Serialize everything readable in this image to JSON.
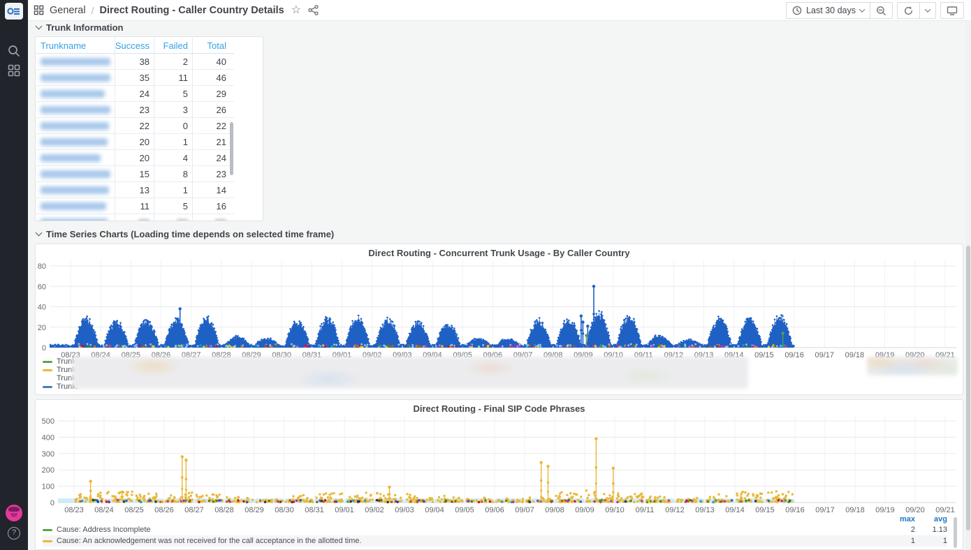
{
  "sidebar": {
    "help_label": "?"
  },
  "header": {
    "breadcrumb": {
      "section": "General",
      "separator": "/",
      "title": "Direct Routing - Caller Country Details"
    },
    "time_picker": {
      "label": "Last 30 days"
    }
  },
  "sections": {
    "trunk_information": "Trunk Information",
    "time_series": "Time Series Charts (Loading time depends on selected time frame)"
  },
  "trunk_table": {
    "columns": [
      "Trunkname",
      "Success",
      "Failed",
      "Total"
    ],
    "names_redacted": true,
    "partial_row_visible": true,
    "rows": [
      {
        "success": "38",
        "failed": "2",
        "total": "40"
      },
      {
        "success": "35",
        "failed": "11",
        "total": "46"
      },
      {
        "success": "24",
        "failed": "5",
        "total": "29"
      },
      {
        "success": "23",
        "failed": "3",
        "total": "26"
      },
      {
        "success": "22",
        "failed": "0",
        "total": "22"
      },
      {
        "success": "20",
        "failed": "1",
        "total": "21"
      },
      {
        "success": "20",
        "failed": "4",
        "total": "24"
      },
      {
        "success": "15",
        "failed": "8",
        "total": "23"
      },
      {
        "success": "13",
        "failed": "1",
        "total": "14"
      },
      {
        "success": "11",
        "failed": "5",
        "total": "16"
      }
    ]
  },
  "chart_data": [
    {
      "type": "scatter",
      "title": "Direct Routing - Concurrent Trunk Usage - By Caller Country",
      "ylim": [
        0,
        80
      ],
      "y_ticks": [
        0,
        20,
        40,
        60,
        80
      ],
      "x_ticks": [
        "08/23",
        "08/24",
        "08/25",
        "08/26",
        "08/27",
        "08/28",
        "08/29",
        "08/30",
        "08/31",
        "09/01",
        "09/02",
        "09/03",
        "09/04",
        "09/05",
        "09/06",
        "09/07",
        "09/08",
        "09/09",
        "09/10",
        "09/11",
        "09/12",
        "09/13",
        "09/14",
        "09/15",
        "09/16",
        "09/17",
        "09/18",
        "09/19",
        "09/20",
        "09/21"
      ],
      "series_color": "#1f60c4",
      "daily_peaks": [
        25,
        22,
        23,
        24,
        26,
        8,
        6,
        22,
        25,
        26,
        25,
        22,
        20,
        6,
        6,
        23,
        25,
        30,
        28,
        9,
        5,
        25,
        25,
        27
      ],
      "spikes": [
        [
          3.55,
          28
        ],
        [
          3.63,
          38
        ],
        [
          16.93,
          31
        ],
        [
          16.99,
          25
        ],
        [
          17.15,
          21
        ],
        [
          17.35,
          60
        ],
        [
          17.5,
          30
        ]
      ],
      "green_spikes": [
        [
          17.1,
          12
        ],
        [
          23.62,
          14
        ]
      ],
      "accent_colors": [
        "#e02f9c",
        "#8f3bb8",
        "#c4162a",
        "#fa6400",
        "#37872d",
        "#96d98d",
        "#8ab8ff",
        "#9e6b00",
        "#f2cc0c",
        "#17a2b8"
      ],
      "legend_redacted": true,
      "legend": [
        {
          "label": "Trunk:",
          "color": "#56a64b",
          "dotted": false
        },
        {
          "label": "Trunk:",
          "color": "#eab839",
          "dotted": false
        },
        {
          "label": "Trunk:",
          "color": "#8ab8ff",
          "dotted": true
        },
        {
          "label": "Trunk:",
          "color": "#447ebc",
          "dotted": false
        }
      ]
    },
    {
      "type": "scatter",
      "title": "Direct Routing - Final SIP Code Phrases",
      "ylim": [
        0,
        500
      ],
      "y_ticks": [
        0,
        100,
        200,
        300,
        400,
        500
      ],
      "x_ticks": [
        "08/23",
        "08/24",
        "08/25",
        "08/26",
        "08/27",
        "08/28",
        "08/29",
        "08/30",
        "08/31",
        "09/01",
        "09/02",
        "09/03",
        "09/04",
        "09/05",
        "09/06",
        "09/07",
        "09/08",
        "09/09",
        "09/10",
        "09/11",
        "09/12",
        "09/13",
        "09/14",
        "09/15",
        "09/16",
        "09/17",
        "09/18",
        "09/19",
        "09/20",
        "09/21"
      ],
      "dot_color": "#eab839",
      "band_color": "#cdeef9",
      "daily_max": [
        60,
        70,
        55,
        60,
        50,
        30,
        20,
        45,
        55,
        60,
        55,
        50,
        40,
        25,
        20,
        40,
        60,
        70,
        60,
        35,
        25,
        55,
        70,
        75
      ],
      "spikes": [
        [
          0.55,
          130
        ],
        [
          1.6,
          65
        ],
        [
          3.6,
          280
        ],
        [
          3.73,
          260
        ],
        [
          10.5,
          95
        ],
        [
          15.55,
          245
        ],
        [
          15.78,
          222
        ],
        [
          17.38,
          390
        ],
        [
          17.95,
          210
        ]
      ],
      "band_accent_colors": [
        "#b5379b",
        "#8f3bb8",
        "#1f60c4",
        "#8a6a00",
        "#2a9bb5",
        "#d4541c",
        "#37872d",
        "#123a6b",
        "#c4162a",
        "#e8c23a"
      ],
      "legend": {
        "headers": [
          "max",
          "avg"
        ],
        "rows": [
          {
            "label": "Cause: Address Incomplete",
            "color": "#56a64b",
            "max": "2",
            "avg": "1.13"
          },
          {
            "label": "Cause: An acknowledgement was not received for the call acceptance in the allotted time.",
            "color": "#eab839",
            "max": "1",
            "avg": "1"
          }
        ]
      }
    }
  ]
}
